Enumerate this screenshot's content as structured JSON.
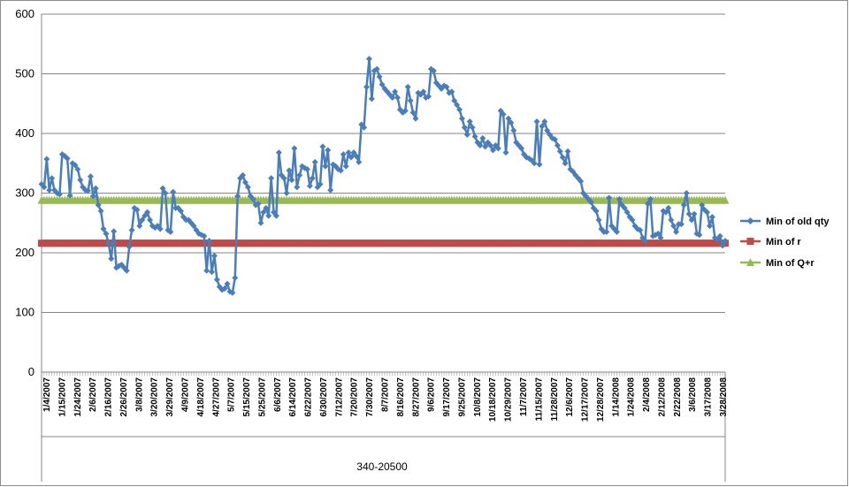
{
  "chart_data": {
    "type": "line",
    "ylim": [
      0,
      600
    ],
    "yticks": [
      0,
      100,
      200,
      300,
      400,
      500,
      600
    ],
    "grid": true,
    "legend_position": "right",
    "group_label": "340-20500",
    "tick_labels": [
      "1/4/2007",
      "1/15/2007",
      "1/24/2007",
      "2/6/2007",
      "2/16/2007",
      "2/26/2007",
      "3/8/2007",
      "3/20/2007",
      "3/29/2007",
      "4/9/2007",
      "4/18/2007",
      "4/27/2007",
      "5/7/2007",
      "5/15/2007",
      "5/25/2007",
      "6/6/2007",
      "6/14/2007",
      "6/22/2007",
      "6/30/2007",
      "7/12/2007",
      "7/20/2007",
      "7/30/2007",
      "8/7/2007",
      "8/16/2007",
      "8/27/2007",
      "9/6/2007",
      "9/17/2007",
      "9/25/2007",
      "10/8/2007",
      "10/18/2007",
      "10/29/2007",
      "11/7/2007",
      "11/15/2007",
      "11/28/2007",
      "12/6/2007",
      "12/17/2007",
      "12/28/2007",
      "1/14/2008",
      "1/24/2008",
      "2/4/2008",
      "2/12/2008",
      "2/22/2008",
      "3/6/2008",
      "3/17/2008",
      "3/28/2008"
    ],
    "series": [
      {
        "name": "Min of old qty",
        "color": "#4A7EBB",
        "marker": "diamond",
        "values": [
          315,
          310,
          357,
          305,
          325,
          305,
          300,
          298,
          365,
          362,
          358,
          296,
          350,
          347,
          340,
          322,
          310,
          305,
          304,
          328,
          295,
          308,
          280,
          270,
          240,
          232,
          215,
          190,
          236,
          175,
          178,
          180,
          175,
          170,
          210,
          238,
          275,
          272,
          245,
          255,
          262,
          268,
          255,
          245,
          242,
          245,
          240,
          308,
          300,
          238,
          235,
          302,
          275,
          275,
          270,
          260,
          255,
          255,
          250,
          245,
          238,
          232,
          230,
          228,
          170,
          220,
          168,
          195,
          155,
          143,
          138,
          140,
          148,
          135,
          133,
          158,
          295,
          325,
          330,
          318,
          310,
          295,
          290,
          280,
          282,
          250,
          268,
          275,
          262,
          325,
          268,
          262,
          368,
          330,
          325,
          300,
          338,
          322,
          375,
          310,
          330,
          345,
          342,
          340,
          312,
          325,
          352,
          310,
          315,
          378,
          345,
          372,
          305,
          348,
          345,
          340,
          338,
          365,
          345,
          368,
          360,
          368,
          362,
          352,
          415,
          410,
          478,
          525,
          458,
          505,
          508,
          495,
          482,
          475,
          470,
          465,
          460,
          470,
          460,
          440,
          435,
          438,
          478,
          455,
          435,
          425,
          468,
          465,
          470,
          460,
          462,
          508,
          505,
          485,
          480,
          475,
          480,
          478,
          468,
          470,
          455,
          448,
          440,
          425,
          410,
          398,
          420,
          410,
          395,
          385,
          380,
          392,
          378,
          385,
          380,
          372,
          380,
          375,
          438,
          432,
          368,
          425,
          418,
          405,
          385,
          380,
          375,
          365,
          360,
          358,
          355,
          350,
          420,
          348,
          412,
          420,
          405,
          398,
          392,
          390,
          380,
          370,
          360,
          350,
          370,
          340,
          336,
          330,
          325,
          320,
          300,
          295,
          290,
          285,
          275,
          270,
          255,
          240,
          235,
          235,
          292,
          245,
          240,
          235,
          290,
          280,
          275,
          268,
          260,
          255,
          245,
          240,
          238,
          225,
          220,
          282,
          290,
          228,
          230,
          232,
          225,
          270,
          268,
          275,
          255,
          245,
          235,
          248,
          248,
          280,
          300,
          265,
          255,
          265,
          232,
          230,
          280,
          272,
          268,
          245,
          260,
          225,
          222,
          228,
          212,
          220
        ]
      },
      {
        "name": "Min of r",
        "color": "#BE4B48",
        "marker": "square",
        "constant": 216
      },
      {
        "name": "Min of Q+r",
        "color": "#98B954",
        "marker": "triangle",
        "constant": 288
      }
    ]
  }
}
